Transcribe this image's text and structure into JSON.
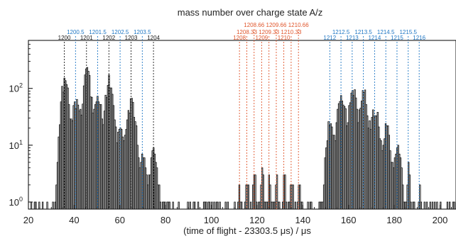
{
  "chart_data": {
    "type": "bar",
    "title": "mass number over charge state A/z",
    "xlabel": "(time of flight - 23303.5 μs) / μs",
    "ylabel": "",
    "xlim": [
      20,
      207
    ],
    "ylim": [
      0.75,
      700
    ],
    "y_scale": "log",
    "grid": false,
    "x_ticks": [
      {
        "value": 20,
        "label": "20"
      },
      {
        "value": 40,
        "label": "40"
      },
      {
        "value": 60,
        "label": "60"
      },
      {
        "value": 80,
        "label": "80"
      },
      {
        "value": 100,
        "label": "100"
      },
      {
        "value": 120,
        "label": "120"
      },
      {
        "value": 140,
        "label": "140"
      },
      {
        "value": 160,
        "label": "160"
      },
      {
        "value": 180,
        "label": "180"
      },
      {
        "value": 200,
        "label": "200"
      }
    ],
    "y_ticks": [
      {
        "value": 1,
        "base": "10",
        "exp": "0"
      },
      {
        "value": 10,
        "base": "10",
        "exp": "1"
      },
      {
        "value": 100,
        "base": "10",
        "exp": "2"
      }
    ],
    "colors": {
      "black": "#1a1a1a",
      "blue": "#1f77c4",
      "orange": "#e0552b",
      "bar_fill": "#b4b4b4",
      "outline": "#000000"
    },
    "markers": [
      {
        "x": 35.7,
        "label": "1200",
        "row": 2,
        "color": "black"
      },
      {
        "x": 40.6,
        "label": "1200.5",
        "row": 1,
        "color": "blue"
      },
      {
        "x": 45.4,
        "label": "1201",
        "row": 2,
        "color": "black"
      },
      {
        "x": 50.3,
        "label": "1201.5",
        "row": 1,
        "color": "blue"
      },
      {
        "x": 55.2,
        "label": "1202",
        "row": 2,
        "color": "black"
      },
      {
        "x": 60.1,
        "label": "1202.5",
        "row": 1,
        "color": "blue"
      },
      {
        "x": 64.9,
        "label": "1203",
        "row": 2,
        "color": "black"
      },
      {
        "x": 69.8,
        "label": "1203.5",
        "row": 1,
        "color": "blue"
      },
      {
        "x": 74.7,
        "label": "1204",
        "row": 2,
        "color": "black"
      },
      {
        "x": 118.7,
        "label": "1208.66",
        "row": 0,
        "color": "orange"
      },
      {
        "x": 115.5,
        "label": "1208.33",
        "row": 1,
        "color": "orange"
      },
      {
        "x": 112.3,
        "label": "1208",
        "row": 2,
        "color": "orange"
      },
      {
        "x": 128.4,
        "label": "1209.66",
        "row": 0,
        "color": "orange"
      },
      {
        "x": 125.2,
        "label": "1209.33",
        "row": 1,
        "color": "orange"
      },
      {
        "x": 122.0,
        "label": "1209",
        "row": 2,
        "color": "orange"
      },
      {
        "x": 138.1,
        "label": "1210.66",
        "row": 0,
        "color": "orange"
      },
      {
        "x": 134.9,
        "label": "1210.33",
        "row": 1,
        "color": "orange"
      },
      {
        "x": 131.7,
        "label": "1210",
        "row": 2,
        "color": "orange"
      },
      {
        "x": 151.8,
        "label": "1212",
        "row": 2,
        "color": "blue"
      },
      {
        "x": 156.7,
        "label": "1212.5",
        "row": 1,
        "color": "blue"
      },
      {
        "x": 161.6,
        "label": "1213",
        "row": 2,
        "color": "blue"
      },
      {
        "x": 166.5,
        "label": "1213.5",
        "row": 1,
        "color": "blue"
      },
      {
        "x": 171.4,
        "label": "1214",
        "row": 2,
        "color": "blue"
      },
      {
        "x": 176.3,
        "label": "1214.5",
        "row": 1,
        "color": "blue"
      },
      {
        "x": 181.2,
        "label": "1215",
        "row": 2,
        "color": "blue"
      },
      {
        "x": 186.1,
        "label": "1215.5",
        "row": 1,
        "color": "blue"
      },
      {
        "x": 190.9,
        "label": "1216",
        "row": 2,
        "color": "blue"
      }
    ],
    "peaks": [
      {
        "x": 35.7,
        "value": 130
      },
      {
        "x": 40.6,
        "value": 55
      },
      {
        "x": 45.4,
        "value": 195
      },
      {
        "x": 50.3,
        "value": 60
      },
      {
        "x": 55.2,
        "value": 140
      },
      {
        "x": 60.1,
        "value": 20
      },
      {
        "x": 64.9,
        "value": 60
      },
      {
        "x": 69.8,
        "value": 6
      },
      {
        "x": 74.7,
        "value": 8
      },
      {
        "x": 112.3,
        "value": 2
      },
      {
        "x": 115.5,
        "value": 2
      },
      {
        "x": 118.7,
        "value": 2.5
      },
      {
        "x": 122.0,
        "value": 3
      },
      {
        "x": 125.2,
        "value": 2.5
      },
      {
        "x": 128.4,
        "value": 3
      },
      {
        "x": 131.7,
        "value": 3
      },
      {
        "x": 134.9,
        "value": 2.5
      },
      {
        "x": 138.1,
        "value": 2
      },
      {
        "x": 151.8,
        "value": 25
      },
      {
        "x": 156.7,
        "value": 75
      },
      {
        "x": 161.6,
        "value": 100
      },
      {
        "x": 166.5,
        "value": 80
      },
      {
        "x": 171.4,
        "value": 45
      },
      {
        "x": 176.3,
        "value": 20
      },
      {
        "x": 181.2,
        "value": 10
      },
      {
        "x": 186.1,
        "value": 4
      },
      {
        "x": 190.9,
        "value": 1.6
      }
    ]
  }
}
